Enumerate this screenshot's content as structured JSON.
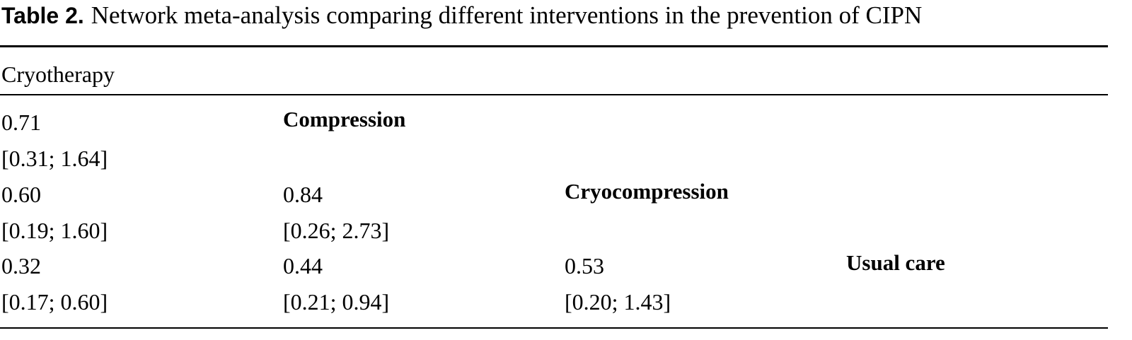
{
  "caption": {
    "label": "Table 2.",
    "text": "Network meta-analysis comparing different interventions in the prevention of CIPN"
  },
  "table": {
    "header": "Cryotherapy",
    "rows": [
      {
        "cells": [
          {
            "estimate": "0.71",
            "ci": "[0.31; 1.64]"
          }
        ],
        "intervention": "Compression"
      },
      {
        "cells": [
          {
            "estimate": "0.60",
            "ci": "[0.19; 1.60]"
          },
          {
            "estimate": "0.84",
            "ci": "[0.26; 2.73]"
          }
        ],
        "intervention": "Cryocompression"
      },
      {
        "cells": [
          {
            "estimate": "0.32",
            "ci": "[0.17; 0.60]"
          },
          {
            "estimate": "0.44",
            "ci": "[0.21; 0.94]"
          },
          {
            "estimate": "0.53",
            "ci": "[0.20; 1.43]"
          }
        ],
        "intervention": "Usual care"
      }
    ]
  }
}
